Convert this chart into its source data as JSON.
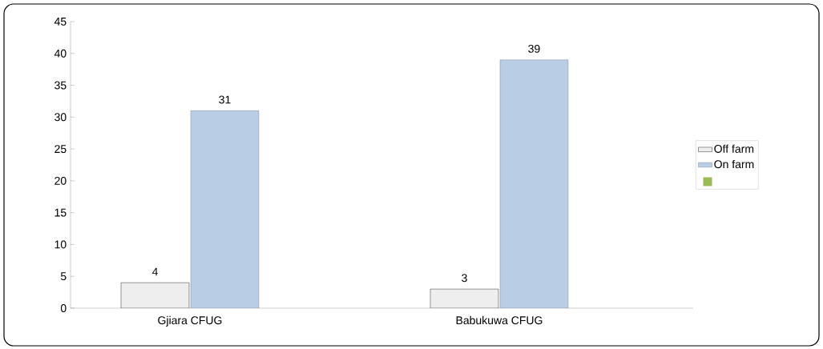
{
  "chart_data": {
    "type": "bar",
    "categories": [
      "Gjiara CFUG",
      "Babukuwa CFUG"
    ],
    "series": [
      {
        "name": "Off farm",
        "color": "#eeeeee",
        "values": [
          4,
          3
        ]
      },
      {
        "name": "On farm",
        "color": "#b9cde5",
        "values": [
          31,
          39
        ]
      },
      {
        "color": "#9bbb59",
        "values": [
          null,
          null
        ]
      }
    ],
    "ylim": [
      0,
      45
    ],
    "yticks": [
      0,
      5,
      10,
      15,
      20,
      25,
      30,
      35,
      40,
      45
    ],
    "data_labels": true,
    "grid": false,
    "legend": "right"
  }
}
